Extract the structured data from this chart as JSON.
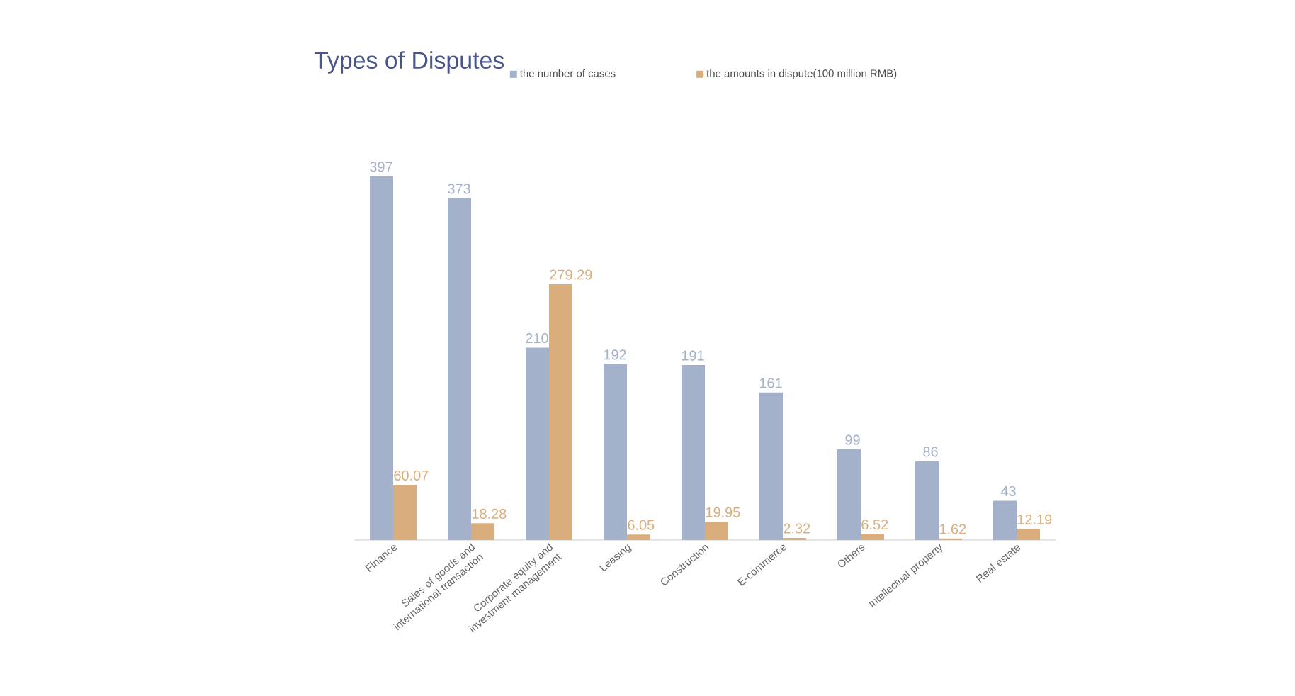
{
  "chart_data": {
    "type": "bar",
    "title": "Types of Disputes",
    "categories": [
      "Finance",
      "Sales of goods and international transaction",
      "Corporate equity and investment management",
      "Leasing",
      "Construction",
      "E-commerce",
      "Others",
      "Intellectual property",
      "Real estate"
    ],
    "series": [
      {
        "name": "the number of cases",
        "color": "#a3b1cb",
        "values": [
          397,
          373,
          210,
          192,
          191,
          161,
          99,
          86,
          43
        ]
      },
      {
        "name": "the amounts in dispute(100 million RMB)",
        "color": "#d9ae7c",
        "values": [
          60.07,
          18.28,
          279.29,
          6.05,
          19.95,
          2.32,
          6.52,
          1.62,
          12.19
        ]
      }
    ],
    "data_labels": true,
    "legend": "top",
    "grid": false
  }
}
